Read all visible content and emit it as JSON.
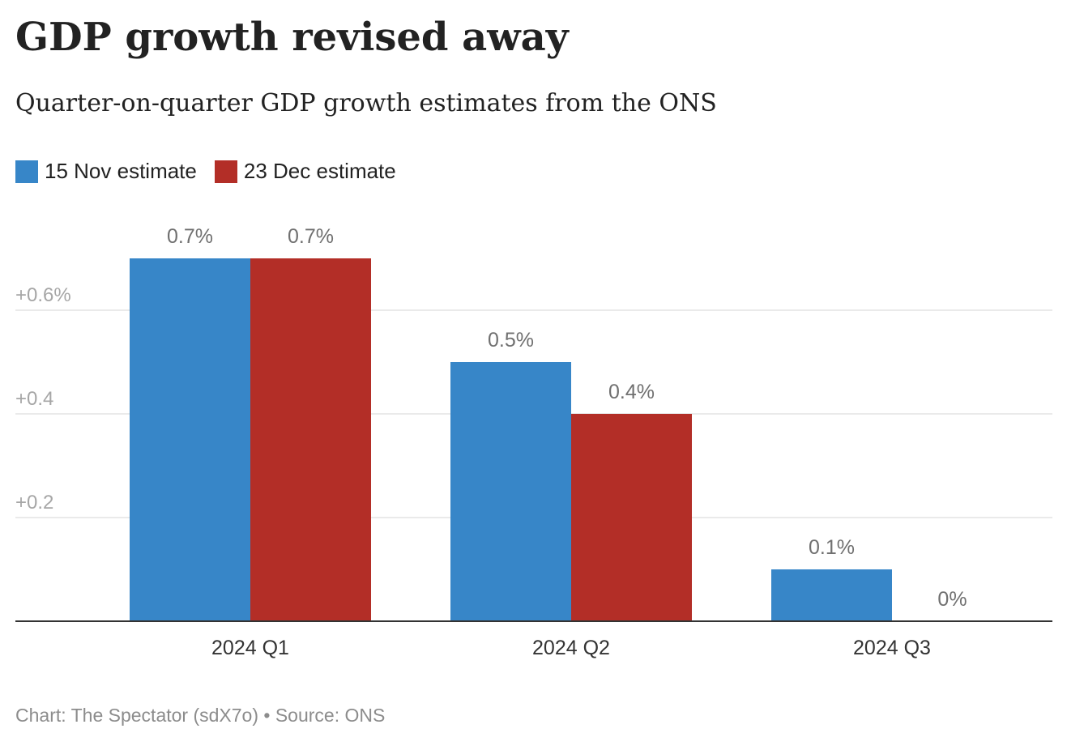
{
  "title": "GDP growth revised away",
  "subtitle": "Quarter-on-quarter GDP growth estimates from the ONS",
  "legend": [
    {
      "label": "15 Nov estimate",
      "color": "#3786c8"
    },
    {
      "label": "23 Dec estimate",
      "color": "#b32e27"
    }
  ],
  "footer": {
    "credit": "Chart: The Spectator (sdX7o)",
    "separator": " • ",
    "source": "Source: ONS"
  },
  "chart_data": {
    "type": "bar",
    "categories": [
      "2024 Q1",
      "2024 Q2",
      "2024 Q3"
    ],
    "series": [
      {
        "name": "15 Nov estimate",
        "color": "#3786c8",
        "values": [
          0.7,
          0.5,
          0.1
        ],
        "labels": [
          "0.7%",
          "0.5%",
          "0.1%"
        ]
      },
      {
        "name": "23 Dec estimate",
        "color": "#b32e27",
        "values": [
          0.7,
          0.4,
          0.0
        ],
        "labels": [
          "0.7%",
          "0.4%",
          "0%"
        ]
      }
    ],
    "yticks": [
      {
        "value": 0.2,
        "label": "+0.2"
      },
      {
        "value": 0.4,
        "label": "+0.4"
      },
      {
        "value": 0.6,
        "label": "+0.6%"
      }
    ],
    "ylim": [
      0,
      0.8
    ],
    "grid": true
  }
}
